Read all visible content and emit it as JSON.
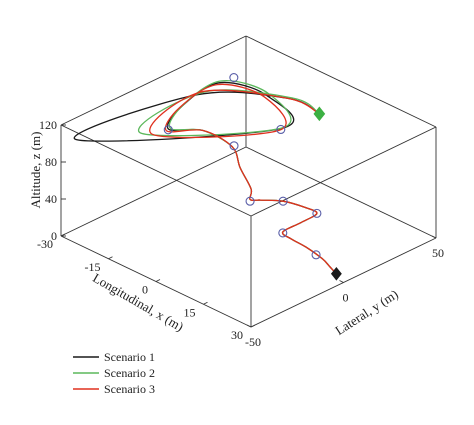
{
  "chart_data": {
    "type": "line",
    "projection": "3d",
    "axes": {
      "x": {
        "label": "Longitudinal, x (m)",
        "ticks": [
          -30,
          -15,
          0,
          15,
          30
        ],
        "range": [
          -30,
          30
        ]
      },
      "y": {
        "label": "Lateral, y (m)",
        "ticks": [
          -50,
          0,
          50
        ],
        "range": [
          -50,
          50
        ]
      },
      "z": {
        "label": "Altitude, z (m)",
        "ticks": [
          0,
          40,
          80,
          120
        ],
        "range": [
          0,
          120
        ]
      }
    },
    "grid": false,
    "legend_position": "bottom-left",
    "start_marker": {
      "shape": "diamond",
      "color": "#1a1a1a",
      "point": [
        26,
        3,
        0
      ]
    },
    "end_marker": {
      "shape": "diamond",
      "color": "#3cb043",
      "point": [
        -8,
        52,
        70
      ]
    },
    "waypoints": [
      [
        19,
        4,
        8
      ],
      [
        12,
        -2,
        26
      ],
      [
        14,
        13,
        36
      ],
      [
        8,
        5,
        47
      ],
      [
        4,
        -6,
        51
      ],
      [
        -11,
        11,
        70
      ],
      [
        -23,
        -4,
        82
      ],
      [
        -28,
        40,
        88
      ],
      [
        -12,
        38,
        60
      ]
    ],
    "series": [
      {
        "name": "Scenario 1",
        "color": "#1a1a1a",
        "points": [
          [
            26,
            3,
            0
          ],
          [
            24,
            3,
            4
          ],
          [
            21,
            4,
            7
          ],
          [
            17,
            2,
            15
          ],
          [
            14,
            -1,
            22
          ],
          [
            12,
            -2,
            27
          ],
          [
            13,
            6,
            31
          ],
          [
            14,
            13,
            36
          ],
          [
            12,
            10,
            42
          ],
          [
            8,
            5,
            47
          ],
          [
            5,
            -2,
            50
          ],
          [
            4,
            -6,
            53
          ],
          [
            2,
            -2,
            57
          ],
          [
            -5,
            4,
            63
          ],
          [
            -11,
            10,
            70
          ],
          [
            -18,
            6,
            80
          ],
          [
            -23,
            -4,
            83
          ],
          [
            -27,
            10,
            87
          ],
          [
            -28,
            32,
            90
          ],
          [
            -20,
            44,
            78
          ],
          [
            -12,
            38,
            61
          ],
          [
            -40,
            -25,
            64
          ],
          [
            -27,
            18,
            92
          ],
          [
            -15,
            47,
            80
          ],
          [
            -8,
            52,
            70
          ]
        ]
      },
      {
        "name": "Scenario 2",
        "color": "#5cb85c",
        "points": [
          [
            26,
            3,
            0
          ],
          [
            24,
            3,
            4
          ],
          [
            21,
            4,
            7
          ],
          [
            17,
            2,
            15
          ],
          [
            14,
            -1,
            22
          ],
          [
            12,
            -2,
            27
          ],
          [
            13,
            6,
            31
          ],
          [
            14,
            13,
            36
          ],
          [
            12,
            10,
            42
          ],
          [
            8,
            5,
            47
          ],
          [
            5,
            -2,
            50
          ],
          [
            4,
            -6,
            53
          ],
          [
            2,
            -2,
            57
          ],
          [
            -5,
            4,
            63
          ],
          [
            -11,
            10,
            70
          ],
          [
            -18,
            6,
            80
          ],
          [
            -23,
            -3,
            83
          ],
          [
            -27,
            11,
            88
          ],
          [
            -28,
            33,
            91
          ],
          [
            -20,
            45,
            79
          ],
          [
            -12,
            39,
            61
          ],
          [
            -30,
            -7,
            70
          ],
          [
            -26,
            21,
            94
          ],
          [
            -14,
            48,
            81
          ],
          [
            -8,
            52,
            70
          ]
        ]
      },
      {
        "name": "Scenario 3",
        "color": "#e0301e",
        "points": [
          [
            26,
            3,
            0
          ],
          [
            24,
            3,
            4
          ],
          [
            21,
            4,
            7
          ],
          [
            17,
            2,
            15
          ],
          [
            14,
            -1,
            22
          ],
          [
            12,
            -2,
            27
          ],
          [
            13,
            6,
            31
          ],
          [
            14,
            13,
            36
          ],
          [
            12,
            10,
            42
          ],
          [
            8,
            5,
            47
          ],
          [
            5,
            -2,
            50
          ],
          [
            4,
            -6,
            53
          ],
          [
            2,
            -2,
            57
          ],
          [
            -5,
            4,
            63
          ],
          [
            -11,
            10,
            70
          ],
          [
            -18,
            6,
            80
          ],
          [
            -23,
            -5,
            82
          ],
          [
            -27,
            9,
            87
          ],
          [
            -28,
            31,
            89
          ],
          [
            -20,
            43,
            77
          ],
          [
            -12,
            37,
            60
          ],
          [
            -28,
            -4,
            69
          ],
          [
            -27,
            20,
            93
          ],
          [
            -15,
            47,
            80
          ],
          [
            -8,
            52,
            70
          ]
        ]
      }
    ]
  }
}
